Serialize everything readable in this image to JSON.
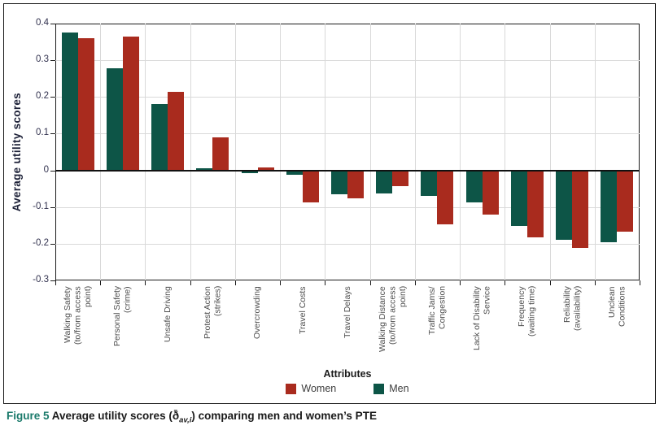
{
  "caption": {
    "label": "Figure 5",
    "pre": " Average utility scores (",
    "symbol": "ð̄",
    "subscript": "av,i",
    "post": ") comparing men and women’s PTE"
  },
  "chart_data": {
    "type": "bar",
    "title": "",
    "xlabel": "Attributes",
    "ylabel": "Average utility scores",
    "ylim": [
      -0.3,
      0.4
    ],
    "yticks": [
      0.4,
      0.3,
      0.2,
      0.1,
      0,
      -0.1,
      -0.2,
      -0.3
    ],
    "grid": true,
    "legend_position": "bottom",
    "categories": [
      "Walking Safety\n(to/from access\npoint)",
      "Personal Safety\n(crime)",
      "Unsafe Driving",
      "Protest Action\n(strikes)",
      "Overcrowding",
      "Travel Costs",
      "Travel Delays",
      "Walking Distance\n(to/from access\npoint)",
      "Traffic Jams/\nCongestion",
      "Lack of Disability\nService",
      "Frequency\n(waiting time)",
      "Reliability\n(availability)",
      "Unclean\nConditions"
    ],
    "series": [
      {
        "name": "Men",
        "color": "#0d5547",
        "values": [
          0.375,
          0.278,
          0.18,
          0.006,
          -0.007,
          -0.013,
          -0.066,
          -0.064,
          -0.07,
          -0.088,
          -0.151,
          -0.189,
          -0.195
        ]
      },
      {
        "name": "Women",
        "color": "#a92b1e",
        "values": [
          0.36,
          0.364,
          0.215,
          0.09,
          0.008,
          -0.087,
          -0.076,
          -0.043,
          -0.147,
          -0.121,
          -0.182,
          -0.211,
          -0.168
        ]
      }
    ],
    "legend": [
      {
        "label": "Women",
        "color": "#a92b1e"
      },
      {
        "label": "Men",
        "color": "#0d5547"
      }
    ],
    "colors": {
      "axis": "#1a1a1a",
      "grid": "#d9d9d9"
    }
  }
}
